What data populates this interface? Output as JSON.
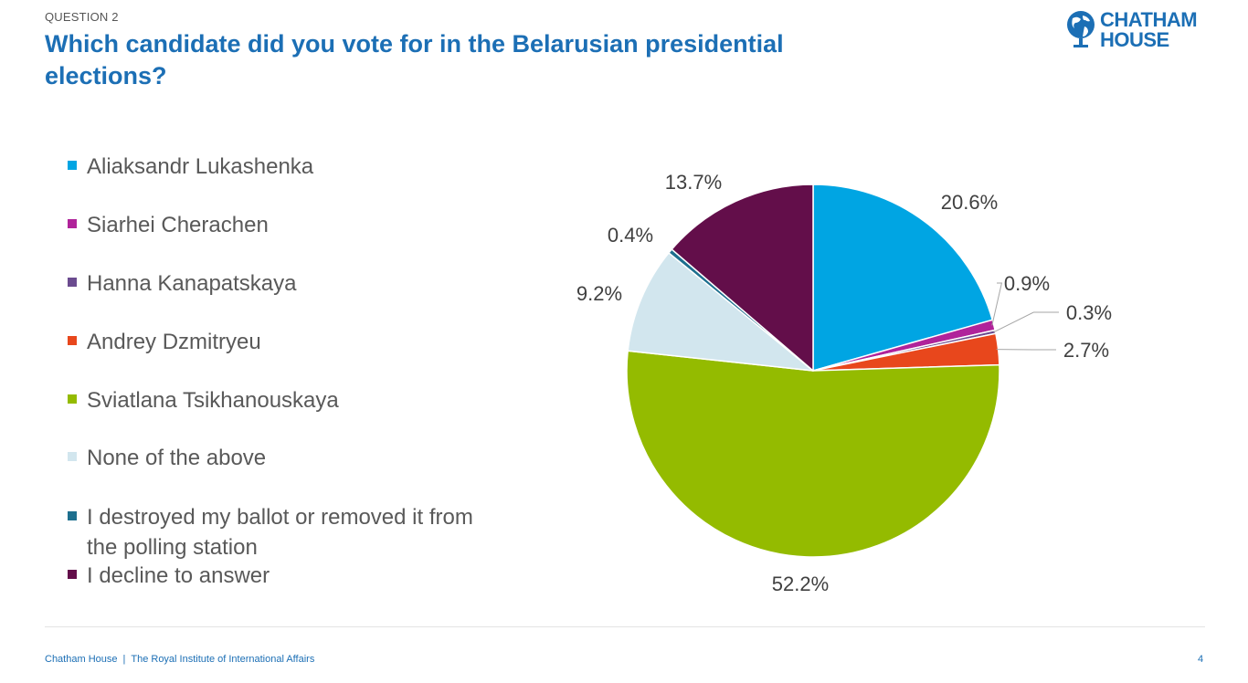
{
  "header": {
    "question_label": "QUESTION 2",
    "title": "Which candidate did you vote for in the Belarusian presidential elections?"
  },
  "logo": {
    "line1": "CHATHAM",
    "line2": "HOUSE",
    "icon": "globe-icon",
    "color": "#1c6fb5"
  },
  "chart_data": {
    "type": "pie",
    "title": "",
    "start_angle_deg": 0,
    "direction": "clockwise",
    "legend_position": "left",
    "categories": [
      "Aliaksandr Lukashenka",
      "Siarhei Cherachen",
      "Hanna Kanapatskaya",
      "Andrey Dzmitryeu",
      "Sviatlana Tsikhanouskaya",
      "None of the above",
      "I destroyed my ballot or removed it from the polling station",
      "I decline to answer"
    ],
    "values": [
      20.6,
      0.9,
      0.3,
      2.7,
      52.2,
      9.2,
      0.4,
      13.7
    ],
    "data_labels": [
      "20.6%",
      "0.9%",
      "0.3%",
      "2.7%",
      "52.2%",
      "9.2%",
      "0.4%",
      "13.7%"
    ],
    "colors": [
      "#00a5e3",
      "#b0239a",
      "#6b4b8f",
      "#e8471c",
      "#94bb00",
      "#d2e6ee",
      "#1d6f8e",
      "#630e4a"
    ]
  },
  "footer": {
    "organisation": "Chatham House",
    "separator": "|",
    "subtitle": "The Royal Institute of International Affairs",
    "page_number": "4"
  }
}
